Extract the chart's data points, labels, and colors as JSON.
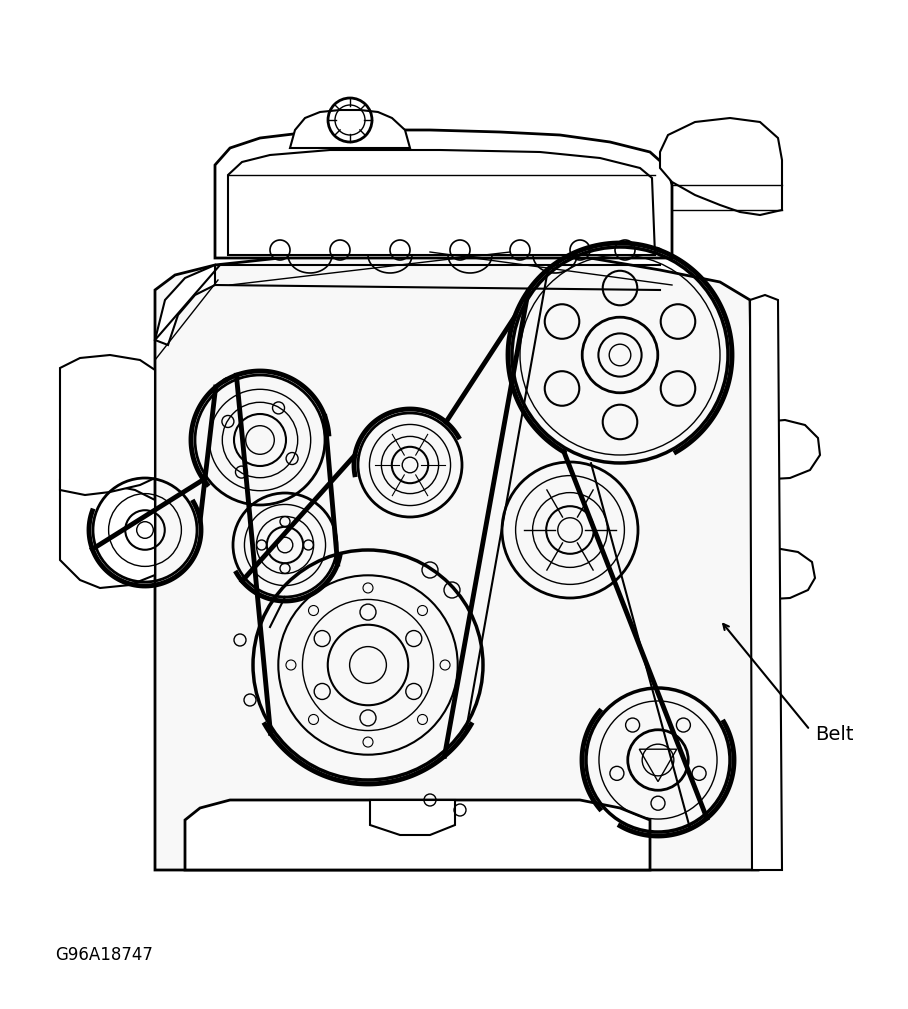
{
  "background_color": "#ffffff",
  "line_color": "#000000",
  "label_belt": "Belt",
  "label_code": "G96A18747",
  "font_size_belt": 14,
  "font_size_code": 12,
  "figwidth": 9.08,
  "figheight": 10.09,
  "dpi": 100
}
